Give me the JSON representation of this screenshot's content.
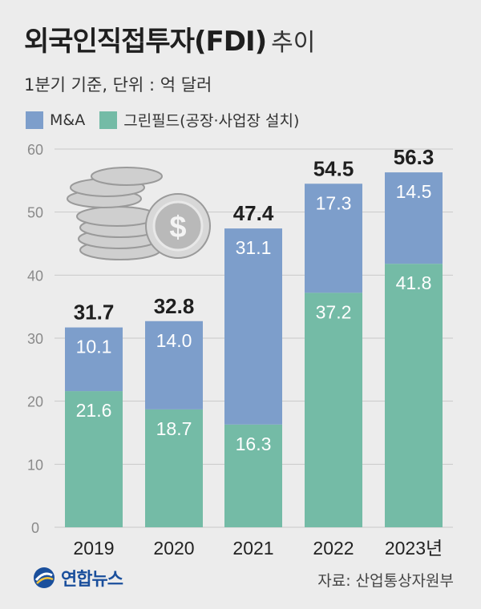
{
  "title": {
    "main": "외국인직접투자(FDI)",
    "suffix": "추이"
  },
  "subtitle": "1분기 기준, 단위 : 억 달러",
  "legend": {
    "ma": "M&A",
    "greenfield": "그린필드(공장·사업장 설치)"
  },
  "colors": {
    "ma": "#7d9ecb",
    "greenfield": "#74bba6",
    "grid": "#c9c9c9",
    "axis_text": "#8a8a8a"
  },
  "source": "자료: 산업통상자원부",
  "logo": {
    "text": "연합뉴스"
  },
  "decoration": {
    "icon": "coin-stack-icon",
    "symbol": "$"
  },
  "chart_data": {
    "type": "bar",
    "stacked": true,
    "categories": [
      "2019",
      "2020",
      "2021",
      "2022",
      "2023년"
    ],
    "series": [
      {
        "name": "그린필드(공장·사업장 설치)",
        "values": [
          21.6,
          18.7,
          16.3,
          37.2,
          41.8
        ]
      },
      {
        "name": "M&A",
        "values": [
          10.1,
          14.0,
          31.1,
          17.3,
          14.5
        ]
      }
    ],
    "value_labels": {
      "그린필드(공장·사업장 설치)": [
        "21.6",
        "18.7",
        "16.3",
        "37.2",
        "41.8"
      ],
      "M&A": [
        "10.1",
        "14.0",
        "31.1",
        "17.3",
        "14.5"
      ]
    },
    "totals": [
      "31.7",
      "32.8",
      "47.4",
      "54.5",
      "56.3"
    ],
    "ylim": [
      0,
      60
    ],
    "yticks": [
      "0",
      "10",
      "20",
      "30",
      "40",
      "50",
      "60"
    ],
    "grid": true
  }
}
